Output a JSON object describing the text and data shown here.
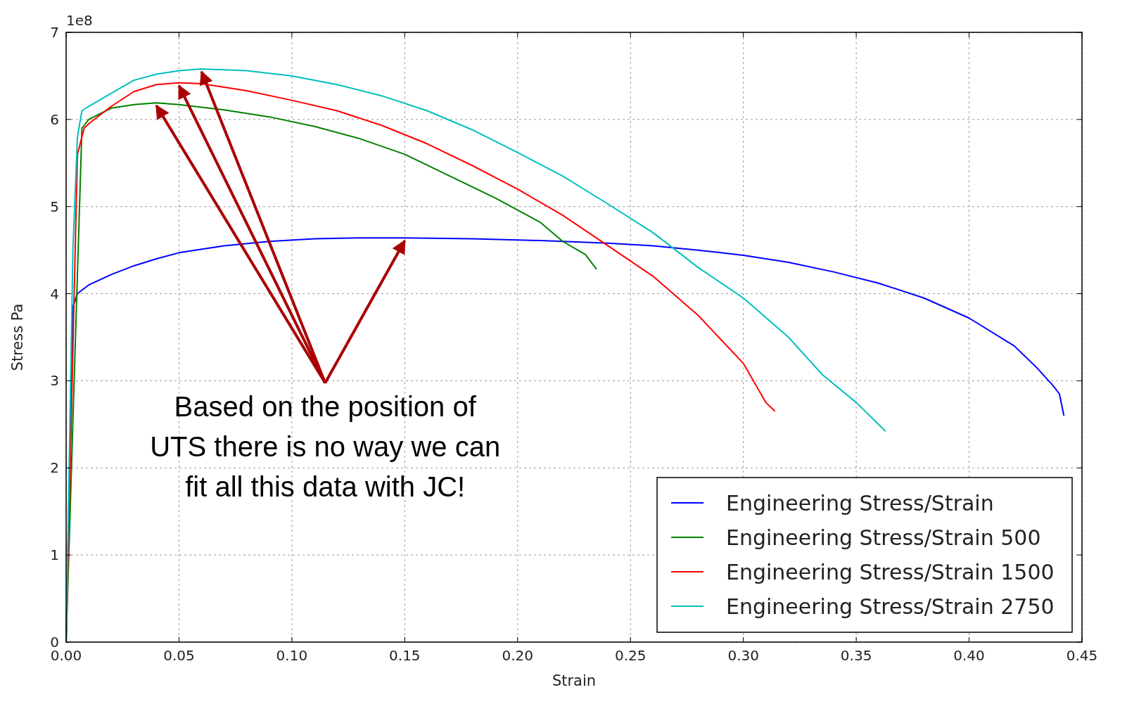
{
  "chart_data": {
    "type": "line",
    "xlabel": "Strain",
    "ylabel": "Stress Pa",
    "annotations": [
      "1e8",
      {
        "text": "Based on the position of\nUTS there is no way we can\nfit all this data with JC!",
        "x": 0.15,
        "y": 4.64
      }
    ],
    "xlim": [
      0,
      0.45
    ],
    "ylim": [
      0,
      7
    ],
    "xticks": [
      {
        "value": 0,
        "label": "0.00"
      },
      {
        "value": 0.05,
        "label": "0.05"
      },
      {
        "value": 0.1,
        "label": "0.10"
      },
      {
        "value": 0.15,
        "label": "0.15"
      },
      {
        "value": 0.2,
        "label": "0.20"
      },
      {
        "value": 0.25,
        "label": "0.25"
      },
      {
        "value": 0.3,
        "label": "0.30"
      },
      {
        "value": 0.35,
        "label": "0.35"
      },
      {
        "value": 0.4,
        "label": "0.40"
      },
      {
        "value": 0.45,
        "label": "0.45"
      }
    ],
    "yticks": [
      0,
      1,
      2,
      3,
      4,
      5,
      6,
      7
    ],
    "grid": true,
    "legend": "bottom right",
    "line_style": "solid",
    "series": [
      {
        "name": "Engineering Stress/Strain",
        "color": "#0000ff",
        "x": [
          0,
          0.003,
          0.005,
          0.01,
          0.02,
          0.03,
          0.04,
          0.05,
          0.07,
          0.09,
          0.11,
          0.13,
          0.15,
          0.18,
          0.21,
          0.24,
          0.26,
          0.28,
          0.3,
          0.32,
          0.34,
          0.36,
          0.38,
          0.4,
          0.42,
          0.43,
          0.437,
          0.44,
          0.442
        ],
        "values": [
          0,
          3.85,
          4,
          4.1,
          4.22,
          4.32,
          4.4,
          4.47,
          4.55,
          4.6,
          4.63,
          4.64,
          4.64,
          4.63,
          4.61,
          4.58,
          4.55,
          4.5,
          4.44,
          4.36,
          4.25,
          4.12,
          3.95,
          3.72,
          3.4,
          3.15,
          2.95,
          2.85,
          2.6
        ]
      },
      {
        "name": "Engineering Stress/Strain 500",
        "color": "#008000",
        "x": [
          0,
          0.007,
          0.01,
          0.02,
          0.03,
          0.04,
          0.05,
          0.07,
          0.09,
          0.11,
          0.13,
          0.15,
          0.17,
          0.19,
          0.21,
          0.22,
          0.23,
          0.235
        ],
        "values": [
          0,
          5.9,
          6,
          6.13,
          6.17,
          6.19,
          6.17,
          6.11,
          6.03,
          5.92,
          5.78,
          5.6,
          5.35,
          5.1,
          4.82,
          4.6,
          4.45,
          4.28
        ]
      },
      {
        "name": "Engineering Stress/Strain 1500",
        "color": "#ff0000",
        "x": [
          0,
          0.005,
          0.008,
          0.01,
          0.02,
          0.03,
          0.04,
          0.05,
          0.06,
          0.08,
          0.1,
          0.12,
          0.14,
          0.16,
          0.18,
          0.2,
          0.22,
          0.24,
          0.26,
          0.28,
          0.3,
          0.31,
          0.314
        ],
        "values": [
          0,
          5.6,
          5.9,
          5.95,
          6.15,
          6.32,
          6.4,
          6.42,
          6.41,
          6.33,
          6.22,
          6.1,
          5.93,
          5.72,
          5.47,
          5.2,
          4.9,
          4.55,
          4.2,
          3.75,
          3.2,
          2.75,
          2.65
        ]
      },
      {
        "name": "Engineering Stress/Strain 2750",
        "color": "#00bfbf",
        "x": [
          0,
          0.003,
          0.005,
          0.007,
          0.01,
          0.02,
          0.03,
          0.04,
          0.05,
          0.06,
          0.08,
          0.1,
          0.12,
          0.14,
          0.16,
          0.18,
          0.2,
          0.22,
          0.24,
          0.26,
          0.28,
          0.3,
          0.32,
          0.335,
          0.35,
          0.363
        ],
        "values": [
          0,
          4.5,
          5.8,
          6.1,
          6.15,
          6.3,
          6.45,
          6.52,
          6.56,
          6.58,
          6.56,
          6.5,
          6.4,
          6.27,
          6.1,
          5.88,
          5.62,
          5.35,
          5.03,
          4.7,
          4.3,
          3.95,
          3.5,
          3.07,
          2.75,
          2.42
        ]
      }
    ]
  }
}
